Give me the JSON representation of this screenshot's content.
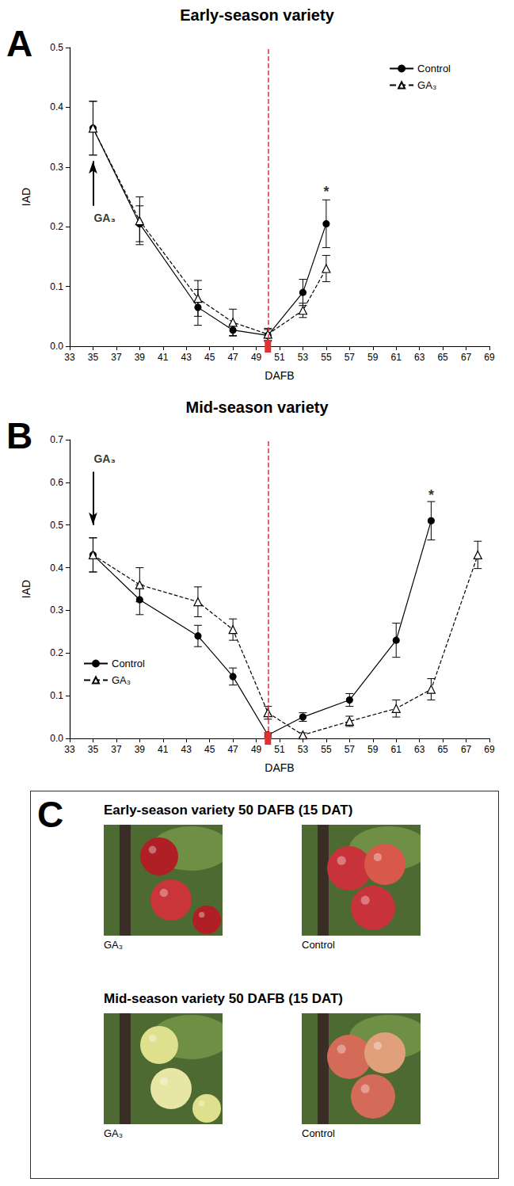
{
  "chart_data": [
    {
      "type": "line",
      "panel_label": "A",
      "title": "Early-season variety",
      "x_label": "DAFB",
      "y_label": "IAD",
      "xlim": [
        33,
        69
      ],
      "xticks": [
        33,
        35,
        37,
        39,
        41,
        43,
        45,
        47,
        49,
        51,
        53,
        55,
        57,
        59,
        61,
        63,
        65,
        67,
        69
      ],
      "ylim": [
        0,
        0.5
      ],
      "yticks": [
        {
          "value": 0,
          "label": "0.0"
        },
        0.1,
        0.2,
        0.3,
        0.4,
        0.5
      ],
      "grid": false,
      "legend": "upper right",
      "series": [
        {
          "name": "Control",
          "color": "#000000",
          "marker": "circle",
          "line_style": "solid",
          "x": [
            35,
            39,
            44,
            47,
            50,
            53,
            55
          ],
          "values": [
            0.365,
            0.205,
            0.065,
            0.027,
            0.018,
            0.09,
            0.205
          ],
          "errors": [
            0.045,
            0.03,
            0.03,
            0.01,
            0.01,
            0.022,
            0.04
          ]
        },
        {
          "name": "GA₃",
          "color": "#000000",
          "marker": "triangle",
          "line_style": "dashed",
          "x": [
            35,
            39,
            44,
            47,
            50,
            53,
            55
          ],
          "values": [
            0.365,
            0.21,
            0.08,
            0.04,
            0.02,
            0.06,
            0.13
          ],
          "errors": [
            0.045,
            0.04,
            0.03,
            0.022,
            0.01,
            0.012,
            0.022
          ]
        }
      ],
      "annotations": [
        {
          "type": "vline",
          "x": 50,
          "color": "#e03030",
          "line_style": "dashed"
        },
        {
          "type": "arrow",
          "from": [
            35,
            0.235
          ],
          "to": [
            35,
            0.31
          ],
          "color": "#000000"
        },
        {
          "type": "text",
          "text": "GA₃",
          "x": 36,
          "y": 0.215
        },
        {
          "type": "text",
          "text": "*",
          "x": 55,
          "y": 0.258
        }
      ]
    },
    {
      "type": "line",
      "panel_label": "B",
      "title": "Mid-season variety",
      "x_label": "DAFB",
      "y_label": "IAD",
      "xlim": [
        33,
        69
      ],
      "xticks": [
        33,
        35,
        37,
        39,
        41,
        43,
        45,
        47,
        49,
        51,
        53,
        55,
        57,
        59,
        61,
        63,
        65,
        67,
        69
      ],
      "ylim": [
        0,
        0.7
      ],
      "yticks": [
        {
          "value": 0,
          "label": "0.0"
        },
        0.1,
        0.2,
        0.3,
        0.4,
        0.5,
        0.6,
        0.7
      ],
      "grid": false,
      "legend": "lower left",
      "series": [
        {
          "name": "Control",
          "color": "#000000",
          "marker": "circle",
          "line_style": "solid",
          "x": [
            35,
            39,
            44,
            47,
            50,
            53,
            57,
            61,
            64
          ],
          "values": [
            0.43,
            0.325,
            0.24,
            0.145,
            0.008,
            0.05,
            0.09,
            0.23,
            0.51
          ],
          "errors": [
            0.04,
            0.035,
            0.025,
            0.02,
            0.005,
            0.01,
            0.015,
            0.04,
            0.045
          ]
        },
        {
          "name": "GA₃",
          "color": "#000000",
          "marker": "triangle",
          "line_style": "dashed",
          "x": [
            35,
            39,
            44,
            47,
            50,
            53,
            57,
            61,
            64,
            68
          ],
          "values": [
            0.43,
            0.36,
            0.32,
            0.255,
            0.06,
            0.008,
            0.04,
            0.07,
            0.115,
            0.43
          ],
          "errors": [
            0.04,
            0.04,
            0.035,
            0.025,
            0.015,
            0.005,
            0.012,
            0.02,
            0.025,
            0.032
          ]
        }
      ],
      "annotations": [
        {
          "type": "vline",
          "x": 50,
          "color": "#e03030",
          "line_style": "dashed"
        },
        {
          "type": "arrow",
          "from": [
            35,
            0.625
          ],
          "to": [
            35,
            0.5
          ],
          "color": "#000000"
        },
        {
          "type": "text",
          "text": "GA₃",
          "x": 36,
          "y": 0.655
        },
        {
          "type": "text",
          "text": "*",
          "x": 64,
          "y": 0.57
        }
      ]
    }
  ],
  "panel_c": {
    "panel_label": "C",
    "rows": [
      {
        "title": "Early-season variety 50 DAFB (15 DAT)",
        "photos": [
          {
            "label": "GA₃"
          },
          {
            "label": "Control"
          }
        ]
      },
      {
        "title": "Mid-season variety 50 DAFB (15 DAT)",
        "photos": [
          {
            "label": "GA₃"
          },
          {
            "label": "Control"
          }
        ]
      }
    ]
  }
}
